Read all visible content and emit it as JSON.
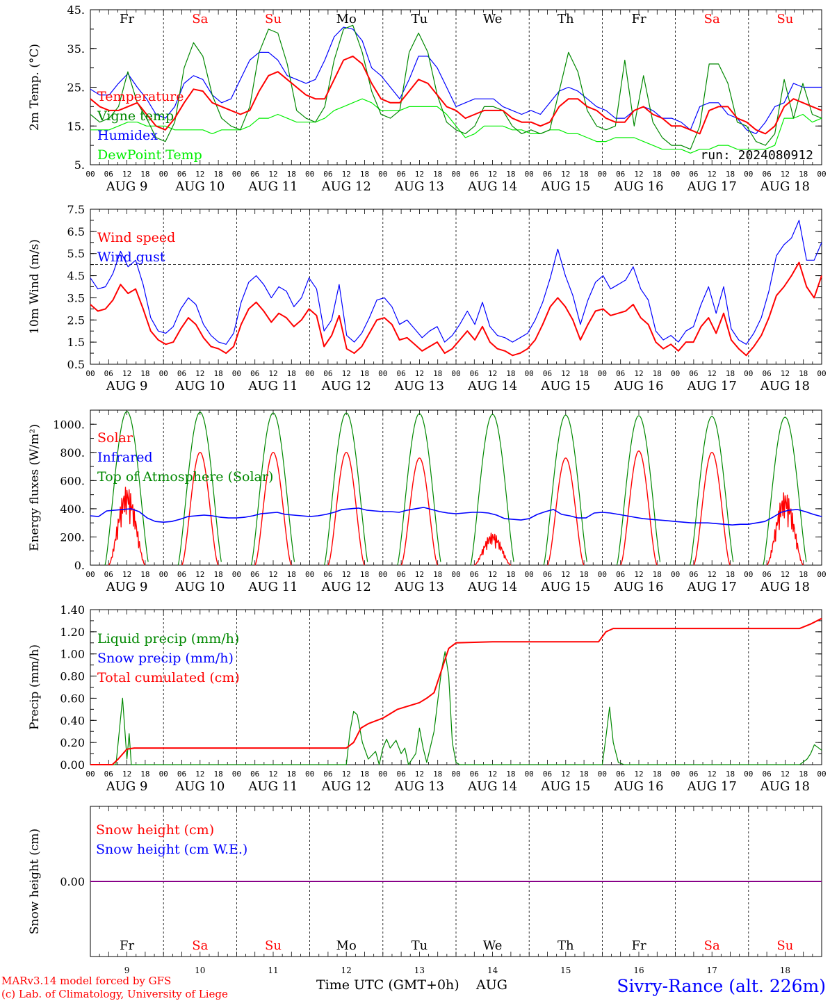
{
  "footer": {
    "model": "MARv3.14 model forced by GFS",
    "lab": "(c) Lab. of Climatology, University of Liege",
    "xaxis": "Time UTC (GMT+0h)",
    "month": "AUG",
    "station": "Sivry-Rance (alt. 226m)"
  },
  "days": [
    "Fr",
    "Sa",
    "Su",
    "Mo",
    "Tu",
    "We",
    "Th",
    "Fr",
    "Sa",
    "Su"
  ],
  "weekend_days": [
    1,
    2,
    8,
    9
  ],
  "day_numbers": [
    "9",
    "10",
    "11",
    "12",
    "13",
    "14",
    "15",
    "16",
    "17",
    "18"
  ],
  "date_labels": [
    "AUG  9",
    "AUG 10",
    "AUG 11",
    "AUG 12",
    "AUG 13",
    "AUG 14",
    "AUG 15",
    "AUG 16",
    "AUG 17",
    "AUG 18"
  ],
  "hour_ticks": [
    "00",
    "06",
    "12",
    "18"
  ],
  "hour_end": "00",
  "colors": {
    "red": "#ff0000",
    "green": "#008800",
    "blue": "#0000ff",
    "lime": "#00ee00",
    "snow": "#880088"
  },
  "chart_data": [
    {
      "type": "line",
      "ylabel": "2m Temp. (°C)",
      "ylim": [
        5,
        45
      ],
      "yticks": [
        "5.",
        "15.",
        "25.",
        "35.",
        "45."
      ],
      "run": "run: 2024080912",
      "series": [
        {
          "name": "Temperature",
          "color": "#ff0000",
          "values": [
            22,
            20,
            19,
            19,
            20,
            21,
            18,
            15,
            14,
            17,
            21,
            24.5,
            24,
            21,
            20,
            19,
            18,
            19,
            24,
            28,
            29,
            27,
            25,
            23,
            22,
            22,
            27,
            32,
            33,
            31,
            26,
            22,
            21,
            21,
            24,
            27,
            26,
            23,
            20,
            19,
            17,
            18,
            19,
            19,
            19,
            17,
            16,
            16,
            15,
            16,
            20,
            22,
            22,
            20,
            19,
            17,
            16,
            16,
            19,
            20,
            18,
            17,
            15,
            15,
            14,
            13,
            19,
            20,
            20,
            17,
            16,
            14,
            13,
            15,
            20,
            22,
            21,
            20,
            19
          ]
        },
        {
          "name": "Vigne temp",
          "color": "#008800",
          "values": [
            18,
            16,
            17,
            20,
            29,
            21,
            17,
            12,
            11,
            16,
            30,
            36.5,
            33,
            23,
            17,
            15,
            14,
            20,
            34,
            40,
            39,
            31,
            19,
            17,
            16,
            20,
            32,
            40,
            41,
            34,
            24,
            18,
            17,
            19,
            34,
            39,
            34,
            23,
            16,
            14,
            13,
            15,
            20,
            20,
            19,
            15,
            13,
            14,
            13,
            14,
            24,
            34,
            29,
            19,
            15,
            14,
            15,
            32,
            15,
            28,
            16,
            12,
            10,
            10,
            9,
            15,
            31,
            31,
            26,
            16,
            15,
            11,
            10,
            13,
            27,
            17,
            26,
            18,
            17
          ]
        },
        {
          "name": "Humidex",
          "color": "#0000ff",
          "values": [
            24.5,
            23,
            23,
            26,
            28.5,
            25,
            22,
            18,
            17,
            20,
            26,
            28,
            27,
            23,
            21,
            22,
            27,
            32,
            34,
            34,
            32,
            28,
            27,
            26,
            27,
            32,
            38,
            40.5,
            40,
            37,
            30,
            28,
            25,
            22,
            27,
            33,
            33,
            30,
            25,
            20,
            21,
            22,
            22,
            22,
            20,
            19,
            18,
            19,
            18,
            21,
            24,
            25,
            24,
            22,
            20,
            19,
            17,
            17,
            19,
            20,
            19,
            17,
            17,
            16,
            14,
            20,
            21,
            21,
            18,
            17,
            14,
            13,
            16,
            20,
            21,
            26,
            25,
            25,
            25
          ]
        },
        {
          "name": "DewPoint Temp",
          "color": "#00ee00",
          "values": [
            14,
            14,
            14,
            15,
            16,
            16,
            15,
            15,
            15,
            14,
            14,
            14,
            14,
            13,
            14,
            14,
            14,
            15,
            17,
            17,
            18,
            17,
            16,
            16,
            16,
            17,
            19,
            20,
            21,
            22,
            21,
            19,
            19,
            19,
            20,
            20,
            20,
            20,
            18,
            15,
            12,
            13,
            15,
            15,
            15,
            14,
            14,
            13,
            13,
            14,
            14,
            13,
            13,
            12,
            11,
            11,
            12,
            12,
            12,
            11,
            10,
            9,
            9,
            9,
            8,
            9,
            9,
            10,
            10,
            9,
            9,
            9,
            9,
            10,
            17,
            17,
            18,
            16,
            17
          ]
        }
      ]
    },
    {
      "type": "line",
      "ylabel": "10m Wind (m/s)",
      "ylim": [
        0.5,
        7.5
      ],
      "yticks": [
        "0.5",
        "1.5",
        "2.5",
        "3.5",
        "4.5",
        "5.5",
        "6.5",
        "7.5"
      ],
      "reference": 5.0,
      "series": [
        {
          "name": "Wind speed",
          "color": "#ff0000",
          "values": [
            3.2,
            2.9,
            3.0,
            3.4,
            4.1,
            3.7,
            3.9,
            3.0,
            2.0,
            1.6,
            1.4,
            1.5,
            2.1,
            2.6,
            2.3,
            1.7,
            1.3,
            1.2,
            1.0,
            1.3,
            2.3,
            3.0,
            3.3,
            2.9,
            2.4,
            2.8,
            2.6,
            2.2,
            2.5,
            3.0,
            2.7,
            1.3,
            1.8,
            2.7,
            1.2,
            1.0,
            1.3,
            1.9,
            2.5,
            2.6,
            2.3,
            1.6,
            1.7,
            1.4,
            1.1,
            1.3,
            1.5,
            1.0,
            1.2,
            1.6,
            2.0,
            1.6,
            2.2,
            1.5,
            1.2,
            1.1,
            0.9,
            1.0,
            1.2,
            1.6,
            2.3,
            3.1,
            3.5,
            3.1,
            2.5,
            1.6,
            2.3,
            2.9,
            3.0,
            2.7,
            2.8,
            2.9,
            3.2,
            2.6,
            2.3,
            1.5,
            1.2,
            1.4,
            1.1,
            1.5,
            1.5,
            2.2,
            2.6,
            1.9,
            2.8,
            1.6,
            1.2,
            0.9,
            1.3,
            1.8,
            2.6,
            3.6,
            4.0,
            4.5,
            5.1,
            4.0,
            3.5,
            4.5
          ]
        },
        {
          "name": "Wind gust",
          "color": "#0000ff",
          "values": [
            4.4,
            3.9,
            4.0,
            4.6,
            5.6,
            4.9,
            5.2,
            4.1,
            2.6,
            2.0,
            1.9,
            2.2,
            3.0,
            3.5,
            3.2,
            2.3,
            1.8,
            1.5,
            1.4,
            1.9,
            3.3,
            4.2,
            4.5,
            4.1,
            3.5,
            4.0,
            3.8,
            3.1,
            3.5,
            4.4,
            3.9,
            2.0,
            2.5,
            4.1,
            1.8,
            1.5,
            1.9,
            2.6,
            3.4,
            3.5,
            3.1,
            2.3,
            2.5,
            2.1,
            1.7,
            2.0,
            2.2,
            1.5,
            1.8,
            2.3,
            2.9,
            2.3,
            3.3,
            2.2,
            1.8,
            1.7,
            1.5,
            1.7,
            1.9,
            2.5,
            3.3,
            4.4,
            5.7,
            4.5,
            3.6,
            2.3,
            3.4,
            4.2,
            4.5,
            3.9,
            4.1,
            4.3,
            4.9,
            3.9,
            3.4,
            2.0,
            1.6,
            1.8,
            1.5,
            2.0,
            2.2,
            3.2,
            4.0,
            2.8,
            4.0,
            2.1,
            1.6,
            1.4,
            1.9,
            2.6,
            3.8,
            5.4,
            5.9,
            6.2,
            7.0,
            5.2,
            5.2,
            6.0
          ]
        }
      ]
    },
    {
      "type": "line",
      "ylabel": "Energy fluxes (W/m²)",
      "ylim": [
        0,
        1100
      ],
      "yticks": [
        "0.",
        "200.",
        "400.",
        "600.",
        "800.",
        "1000."
      ],
      "series": [
        {
          "name": "Solar",
          "color": "#ff0000",
          "peaks": [
            560,
            800,
            800,
            800,
            760,
            230,
            760,
            810,
            800,
            520
          ]
        },
        {
          "name": "Infrared",
          "color": "#0000ff",
          "values": [
            350,
            345,
            385,
            390,
            395,
            400,
            380,
            335,
            310,
            305,
            310,
            325,
            345,
            350,
            355,
            350,
            340,
            335,
            335,
            340,
            350,
            365,
            370,
            375,
            360,
            355,
            350,
            345,
            350,
            360,
            375,
            395,
            400,
            405,
            390,
            385,
            380,
            380,
            375,
            390,
            400,
            410,
            395,
            380,
            370,
            365,
            370,
            375,
            375,
            370,
            355,
            330,
            325,
            320,
            330,
            360,
            380,
            395,
            360,
            350,
            335,
            335,
            370,
            375,
            370,
            360,
            350,
            340,
            330,
            325,
            320,
            315,
            310,
            305,
            300,
            300,
            300,
            295,
            290,
            285,
            290,
            290,
            300,
            310,
            340,
            375,
            390,
            395,
            380,
            360,
            345
          ]
        },
        {
          "name": "Top of Atmosphere (Solar)",
          "color": "#008800",
          "peaks": [
            1090,
            1085,
            1080,
            1080,
            1075,
            1070,
            1065,
            1060,
            1055,
            1050
          ]
        }
      ]
    },
    {
      "type": "line",
      "ylabel": "Precip (mm/h)",
      "ylim": [
        0,
        1.4
      ],
      "yticks": [
        "0.00",
        "0.20",
        "0.40",
        "0.60",
        "0.80",
        "1.00",
        "1.20",
        "1.40"
      ],
      "series": [
        {
          "name": "Liquid precip (mm/h)",
          "color": "#008800"
        },
        {
          "name": "Snow precip (mm/h)",
          "color": "#0000ff"
        },
        {
          "name": "Total cumulated (cm)",
          "color": "#ff0000"
        }
      ]
    },
    {
      "type": "line",
      "ylabel": "Snow height (cm)",
      "ylim": [
        -1,
        1
      ],
      "yticks": [
        "0.00"
      ],
      "series": [
        {
          "name": "Snow height (cm)",
          "color": "#ff0000"
        },
        {
          "name": "Snow height (cm W.E.)",
          "color": "#0000ff"
        }
      ]
    }
  ]
}
